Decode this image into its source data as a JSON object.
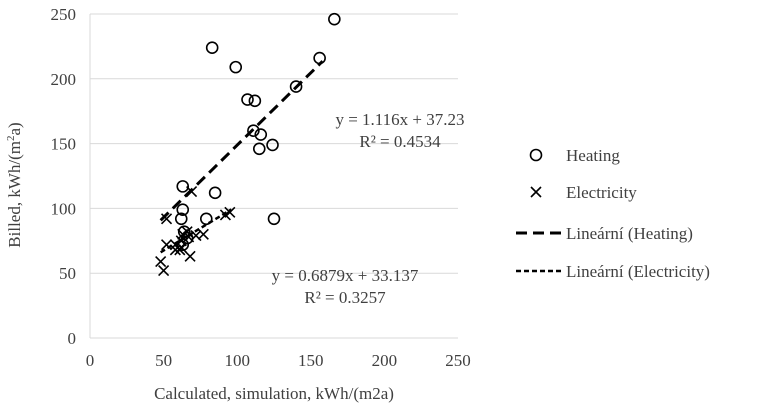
{
  "chart_data": {
    "type": "scatter",
    "xlabel": "Calculated, simulation, kWh/(m2a)",
    "ylabel_parts": [
      "Billed, kWh/(m",
      "2",
      "a)"
    ],
    "xlim": [
      0,
      250
    ],
    "ylim": [
      0,
      250
    ],
    "xticks": [
      0,
      50,
      100,
      150,
      200,
      250
    ],
    "yticks": [
      0,
      50,
      100,
      150,
      200,
      250
    ],
    "grid": "horizontal",
    "legend_position": "right",
    "series": [
      {
        "name": "Heating",
        "marker": "circle",
        "color": "#000000",
        "points": [
          [
            166,
            246
          ],
          [
            83,
            224
          ],
          [
            99,
            209
          ],
          [
            156,
            216
          ],
          [
            140,
            194
          ],
          [
            107,
            184
          ],
          [
            112,
            183
          ],
          [
            111,
            160
          ],
          [
            116,
            157
          ],
          [
            124,
            149
          ],
          [
            115,
            146
          ],
          [
            63,
            117
          ],
          [
            85,
            112
          ],
          [
            63,
            99
          ],
          [
            62,
            92
          ],
          [
            79,
            92
          ],
          [
            125,
            92
          ],
          [
            64,
            82
          ],
          [
            66,
            77
          ],
          [
            63,
            72
          ]
        ]
      },
      {
        "name": "Electricity",
        "marker": "x",
        "color": "#000000",
        "points": [
          [
            69,
            113
          ],
          [
            52,
            92
          ],
          [
            95,
            97
          ],
          [
            92,
            95
          ],
          [
            52,
            72
          ],
          [
            58,
            72
          ],
          [
            62,
            75
          ],
          [
            63,
            80
          ],
          [
            66,
            82
          ],
          [
            67,
            78
          ],
          [
            72,
            79
          ],
          [
            77,
            80
          ],
          [
            61,
            68
          ],
          [
            68,
            63
          ],
          [
            48,
            59
          ],
          [
            50,
            52
          ],
          [
            58,
            68
          ],
          [
            62,
            70
          ]
        ]
      }
    ],
    "trendlines": [
      {
        "name": "Lineární (Heating)",
        "series": "Heating",
        "slope": 1.116,
        "intercept": 37.23,
        "x_range": [
          48,
          158
        ],
        "style": "dashed-long",
        "equation": "y = 1.116x + 37.23",
        "r2": "R² = 0.4534"
      },
      {
        "name": "Lineární (Electricity)",
        "series": "Electricity",
        "slope": 0.6879,
        "intercept": 33.137,
        "x_range": [
          48,
          96
        ],
        "style": "dashed-short",
        "equation": "y = 0.6879x + 33.137",
        "r2": "R² = 0.3257"
      }
    ]
  }
}
